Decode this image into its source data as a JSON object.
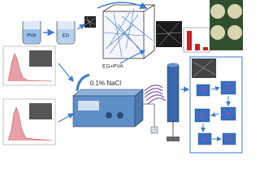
{
  "labels": {
    "beaker_1": "PVA",
    "beaker_2": "EG",
    "mixture": "EG+PVA",
    "solution": "0.1% NaCl"
  }
}
